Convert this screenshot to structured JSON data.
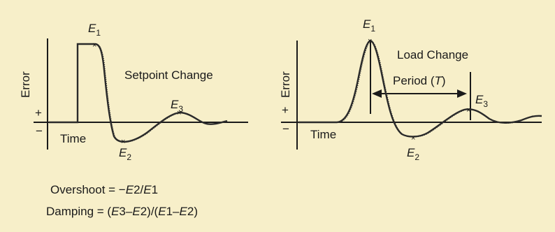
{
  "left_panel": {
    "y_axis_label": "Error",
    "plus_sign": "+",
    "minus_sign": "−",
    "x_axis_label": "Time",
    "annotation": "Setpoint Change",
    "peaks": [
      {
        "letter": "E",
        "sub": "1"
      },
      {
        "letter": "E",
        "sub": "2"
      },
      {
        "letter": "E",
        "sub": "3"
      }
    ]
  },
  "right_panel": {
    "y_axis_label": "Error",
    "plus_sign": "+",
    "minus_sign": "−",
    "x_axis_label": "Time",
    "annotation": "Load Change",
    "period_label": "Period (",
    "period_symbol": "T",
    "period_close": ")",
    "peaks": [
      {
        "letter": "E",
        "sub": "1"
      },
      {
        "letter": "E",
        "sub": "2"
      },
      {
        "letter": "E",
        "sub": "3"
      }
    ]
  },
  "formulas": {
    "overshoot": {
      "prefix": "Overshoot = −",
      "a": "E",
      "a_num": "2",
      "sep": "/",
      "b": "E",
      "b_num": "1"
    },
    "damping": {
      "prefix": "Damping = (",
      "e3": "E",
      "e3_num": "3",
      "dash1": "–",
      "e2a": "E",
      "e2a_num": "2",
      "mid": ")/(",
      "e1": "E",
      "e1_num": "1",
      "dash2": "–",
      "e2b": "E",
      "e2b_num": "2",
      "close": ")"
    }
  },
  "colors": {
    "background": "#f7efc9",
    "ink": "#1a1a1a",
    "trace": "#2a2a2a"
  }
}
